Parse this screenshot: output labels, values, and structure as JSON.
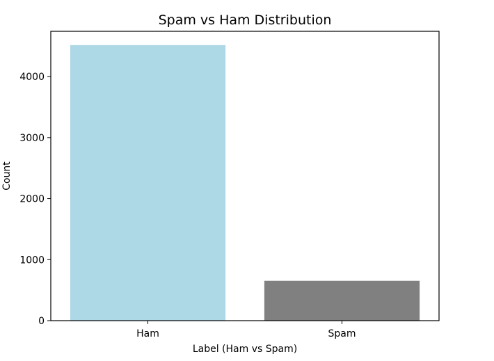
{
  "chart_data": {
    "type": "bar",
    "title": "Spam vs Ham Distribution",
    "xlabel": "Label (Ham vs Spam)",
    "ylabel": "Count",
    "categories": [
      "Ham",
      "Spam"
    ],
    "values": [
      4516,
      653
    ],
    "colors": [
      "#add8e6",
      "#808080"
    ],
    "ylim": [
      0,
      4742
    ],
    "yticks": [
      0,
      1000,
      2000,
      3000,
      4000
    ],
    "ytick_labels": [
      "0",
      "1000",
      "2000",
      "3000",
      "4000"
    ],
    "grid": false,
    "legend": false
  }
}
